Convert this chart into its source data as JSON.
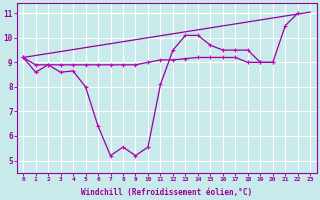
{
  "xlabel": "Windchill (Refroidissement éolien,°C)",
  "bg_color": "#c8eaea",
  "grid_color": "#b8d8d8",
  "line_color": "#990099",
  "marker_color": "#cc00cc",
  "xlim": [
    -0.5,
    23.5
  ],
  "ylim": [
    4.5,
    11.4
  ],
  "xticks": [
    0,
    1,
    2,
    3,
    4,
    5,
    6,
    7,
    8,
    9,
    10,
    11,
    12,
    13,
    14,
    15,
    16,
    17,
    18,
    19,
    20,
    21,
    22,
    23
  ],
  "yticks": [
    5,
    6,
    7,
    8,
    9,
    10,
    11
  ],
  "line1_x": [
    0,
    1,
    2,
    3,
    4,
    5,
    6,
    7,
    8,
    9,
    10,
    11,
    12,
    13,
    14,
    15,
    16,
    17,
    18,
    19,
    20,
    21,
    22
  ],
  "line1_y": [
    9.2,
    8.6,
    8.9,
    8.6,
    8.65,
    8.0,
    6.4,
    5.2,
    5.55,
    5.2,
    5.55,
    8.1,
    9.5,
    10.1,
    10.1,
    9.7,
    9.5,
    9.5,
    9.5,
    9.0,
    9.0,
    10.5,
    11.0
  ],
  "line2_x": [
    0,
    1,
    2,
    3,
    4,
    5,
    6,
    7,
    8,
    9,
    10,
    11,
    12,
    13,
    14,
    15,
    16,
    17,
    18,
    19,
    20
  ],
  "line2_y": [
    9.2,
    8.9,
    8.9,
    8.9,
    8.9,
    8.9,
    8.9,
    8.9,
    8.9,
    8.9,
    9.0,
    9.1,
    9.1,
    9.15,
    9.2,
    9.2,
    9.2,
    9.2,
    9.0,
    9.0,
    9.0
  ],
  "line3_x": [
    0,
    23
  ],
  "line3_y": [
    9.2,
    11.05
  ]
}
